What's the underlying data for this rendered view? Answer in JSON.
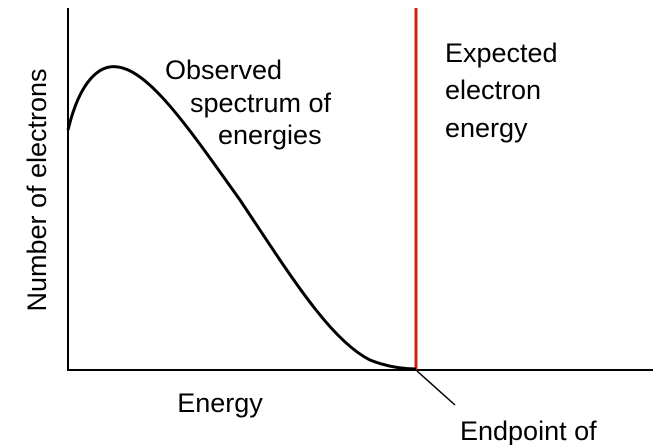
{
  "y_axis_label": "Number of electrons",
  "x_axis_label": "Energy",
  "curve_label": [
    "Observed",
    "spectrum of",
    "energies"
  ],
  "line_label": [
    "Expected",
    "electron",
    "energy"
  ],
  "endpoint_label": "Endpoint of"
}
